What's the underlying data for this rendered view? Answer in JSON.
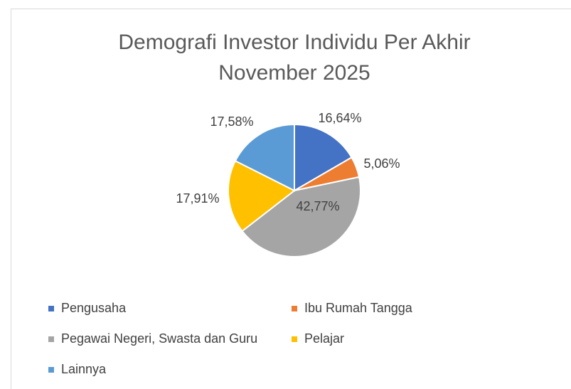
{
  "chart_data": {
    "type": "pie",
    "title": [
      "Demografi Investor Individu Per Akhir",
      "November 2025"
    ],
    "categories": [
      "Pengusaha",
      "Ibu Rumah Tangga",
      "Pegawai Negeri, Swasta dan Guru",
      "Pelajar",
      "Lainnya"
    ],
    "values": [
      16.64,
      5.06,
      42.77,
      17.91,
      17.58
    ],
    "value_labels": [
      "16,64%",
      "5,06%",
      "42,77%",
      "17,91%",
      "17,58%"
    ],
    "colors": [
      "#4472c4",
      "#ed7d31",
      "#a5a5a5",
      "#ffc000",
      "#5b9bd5"
    ],
    "legend": "bottom"
  }
}
